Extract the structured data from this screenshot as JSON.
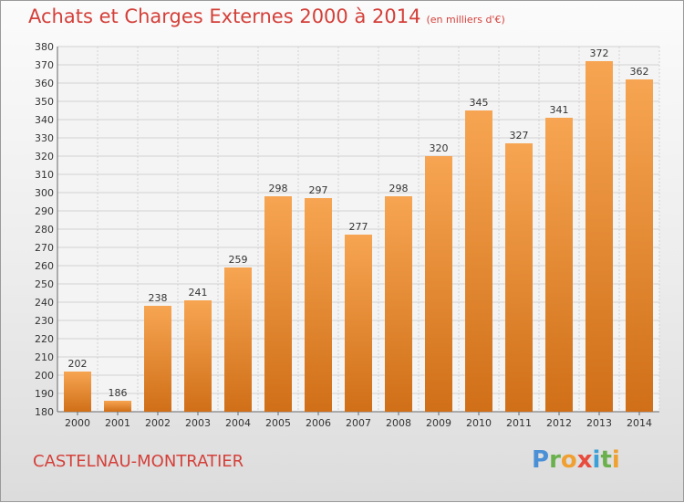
{
  "title": "Achats et Charges Externes 2000 à 2014",
  "subtitle": "(en milliers d'€)",
  "place": "CASTELNAU-MONTRATIER",
  "logo": {
    "letters": [
      "P",
      "r",
      "o",
      "x",
      "i",
      "t",
      "i"
    ],
    "colors": [
      "#4a90d6",
      "#6ab04c",
      "#f0a030",
      "#e84c3d",
      "#3aa0d8",
      "#6ab04c",
      "#f0a030"
    ]
  },
  "colors": {
    "bar_top": "#f7a552",
    "bar_bottom": "#d06f18",
    "grid": "#d2d2d2",
    "text": "#d4403a"
  },
  "chart_data": {
    "type": "bar",
    "categories": [
      "2000",
      "2001",
      "2002",
      "2003",
      "2004",
      "2005",
      "2006",
      "2007",
      "2008",
      "2009",
      "2010",
      "2011",
      "2012",
      "2013",
      "2014"
    ],
    "values": [
      202,
      186,
      238,
      241,
      259,
      298,
      297,
      277,
      298,
      320,
      345,
      327,
      341,
      372,
      362
    ],
    "ylim": [
      180,
      380
    ],
    "yticks": [
      180,
      190,
      200,
      210,
      220,
      230,
      240,
      250,
      260,
      270,
      280,
      290,
      300,
      310,
      320,
      330,
      340,
      350,
      360,
      370,
      380
    ],
    "grid": true
  }
}
